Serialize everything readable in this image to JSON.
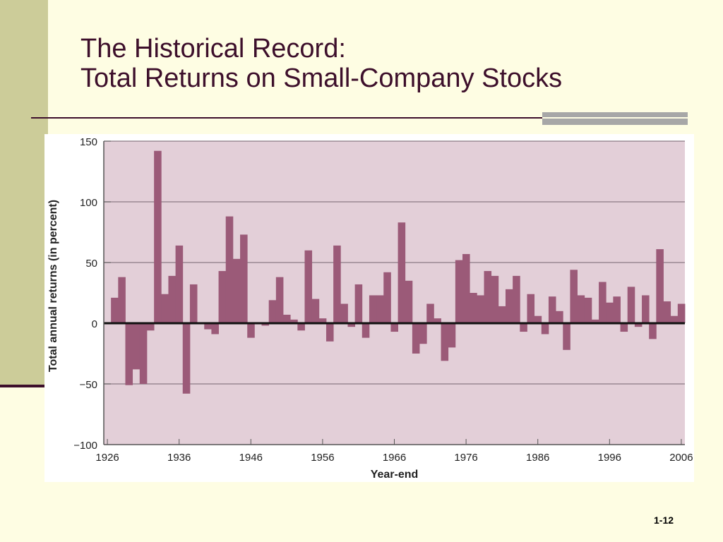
{
  "slide": {
    "title_line1": "The Historical Record:",
    "title_line2": "Total Returns on Small-Company Stocks",
    "page_number": "1-12"
  },
  "colors": {
    "background": "#fefde3",
    "accent_band": "#cccc99",
    "title_text": "#3d0f2b",
    "plot_background": "#e3cfd8",
    "bar_fill": "#9b5a78"
  },
  "chart_data": {
    "type": "bar",
    "xlabel": "Year-end",
    "ylabel": "Total annual returns (in percent)",
    "ylim": [
      -100,
      150
    ],
    "yticks": [
      150,
      100,
      50,
      0,
      -50,
      -100
    ],
    "ytick_labels": [
      "150",
      "100",
      "50",
      "0",
      "−50",
      "−100"
    ],
    "xticks": [
      "1926",
      "1936",
      "1946",
      "1956",
      "1966",
      "1976",
      "1986",
      "1996",
      "2006"
    ],
    "grid": true,
    "years": [
      1926,
      1927,
      1928,
      1929,
      1930,
      1931,
      1932,
      1933,
      1934,
      1935,
      1936,
      1937,
      1938,
      1939,
      1940,
      1941,
      1942,
      1943,
      1944,
      1945,
      1946,
      1947,
      1948,
      1949,
      1950,
      1951,
      1952,
      1953,
      1954,
      1955,
      1956,
      1957,
      1958,
      1959,
      1960,
      1961,
      1962,
      1963,
      1964,
      1965,
      1966,
      1967,
      1968,
      1969,
      1970,
      1971,
      1972,
      1973,
      1974,
      1975,
      1976,
      1977,
      1978,
      1979,
      1980,
      1981,
      1982,
      1983,
      1984,
      1985,
      1986,
      1987,
      1988,
      1989,
      1990,
      1991,
      1992,
      1993,
      1994,
      1995,
      1996,
      1997,
      1998,
      1999,
      2000,
      2001,
      2002,
      2003,
      2004,
      2005,
      2006
    ],
    "values": [
      0,
      21,
      38,
      -51,
      -38,
      -50,
      -6,
      142,
      24,
      39,
      64,
      -58,
      32,
      0,
      -5,
      -9,
      43,
      88,
      53,
      73,
      -12,
      0,
      -2,
      19,
      38,
      7,
      3,
      -6,
      60,
      20,
      4,
      -15,
      64,
      16,
      -3,
      32,
      -12,
      23,
      23,
      42,
      -7,
      83,
      35,
      -25,
      -17,
      16,
      4,
      -31,
      -20,
      52,
      57,
      25,
      23,
      43,
      39,
      14,
      28,
      39,
      -7,
      24,
      6,
      -9,
      22,
      10,
      -22,
      44,
      23,
      21,
      3,
      34,
      17,
      22,
      -7,
      30,
      -3,
      23,
      -13,
      61,
      18,
      6,
      16
    ]
  }
}
